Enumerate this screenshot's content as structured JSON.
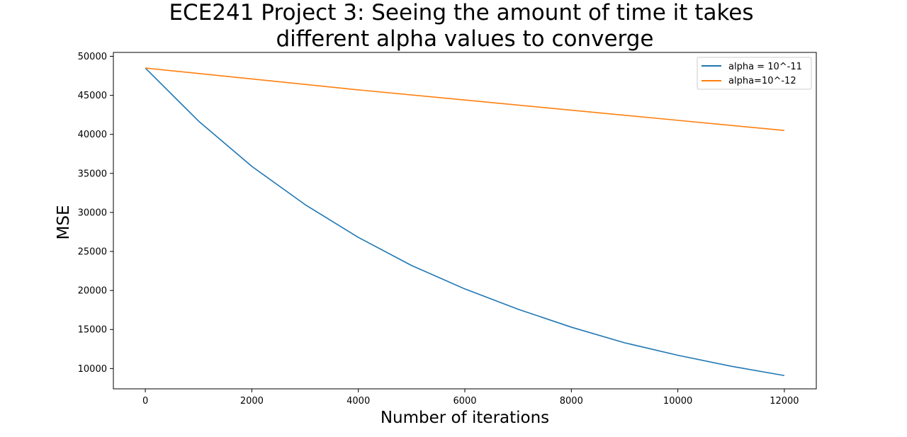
{
  "chart_data": {
    "type": "line",
    "title_lines": [
      "ECE241 Project 3: Seeing the amount of time it takes",
      "different alpha values to converge"
    ],
    "xlabel": "Number of iterations",
    "ylabel": "MSE",
    "xlim": [
      -600,
      12600
    ],
    "ylim": [
      7400,
      50500
    ],
    "xticks": [
      0,
      2000,
      4000,
      6000,
      8000,
      10000,
      12000
    ],
    "yticks": [
      10000,
      15000,
      20000,
      25000,
      30000,
      35000,
      40000,
      45000,
      50000
    ],
    "grid": false,
    "legend_position": "top-right",
    "series": [
      {
        "name": "alpha = 10^-11",
        "color": "#1f77b4",
        "x": [
          0,
          1000,
          2000,
          3000,
          4000,
          5000,
          6000,
          7000,
          8000,
          9000,
          10000,
          11000,
          12000
        ],
        "y": [
          48500,
          41700,
          35900,
          31000,
          26800,
          23200,
          20200,
          17600,
          15300,
          13300,
          11700,
          10300,
          9100
        ]
      },
      {
        "name": "alpha=10^-12",
        "color": "#ff7f0e",
        "x": [
          0,
          2000,
          4000,
          6000,
          8000,
          10000,
          12000
        ],
        "y": [
          48500,
          47100,
          45700,
          44400,
          43100,
          41800,
          40500
        ]
      }
    ]
  }
}
